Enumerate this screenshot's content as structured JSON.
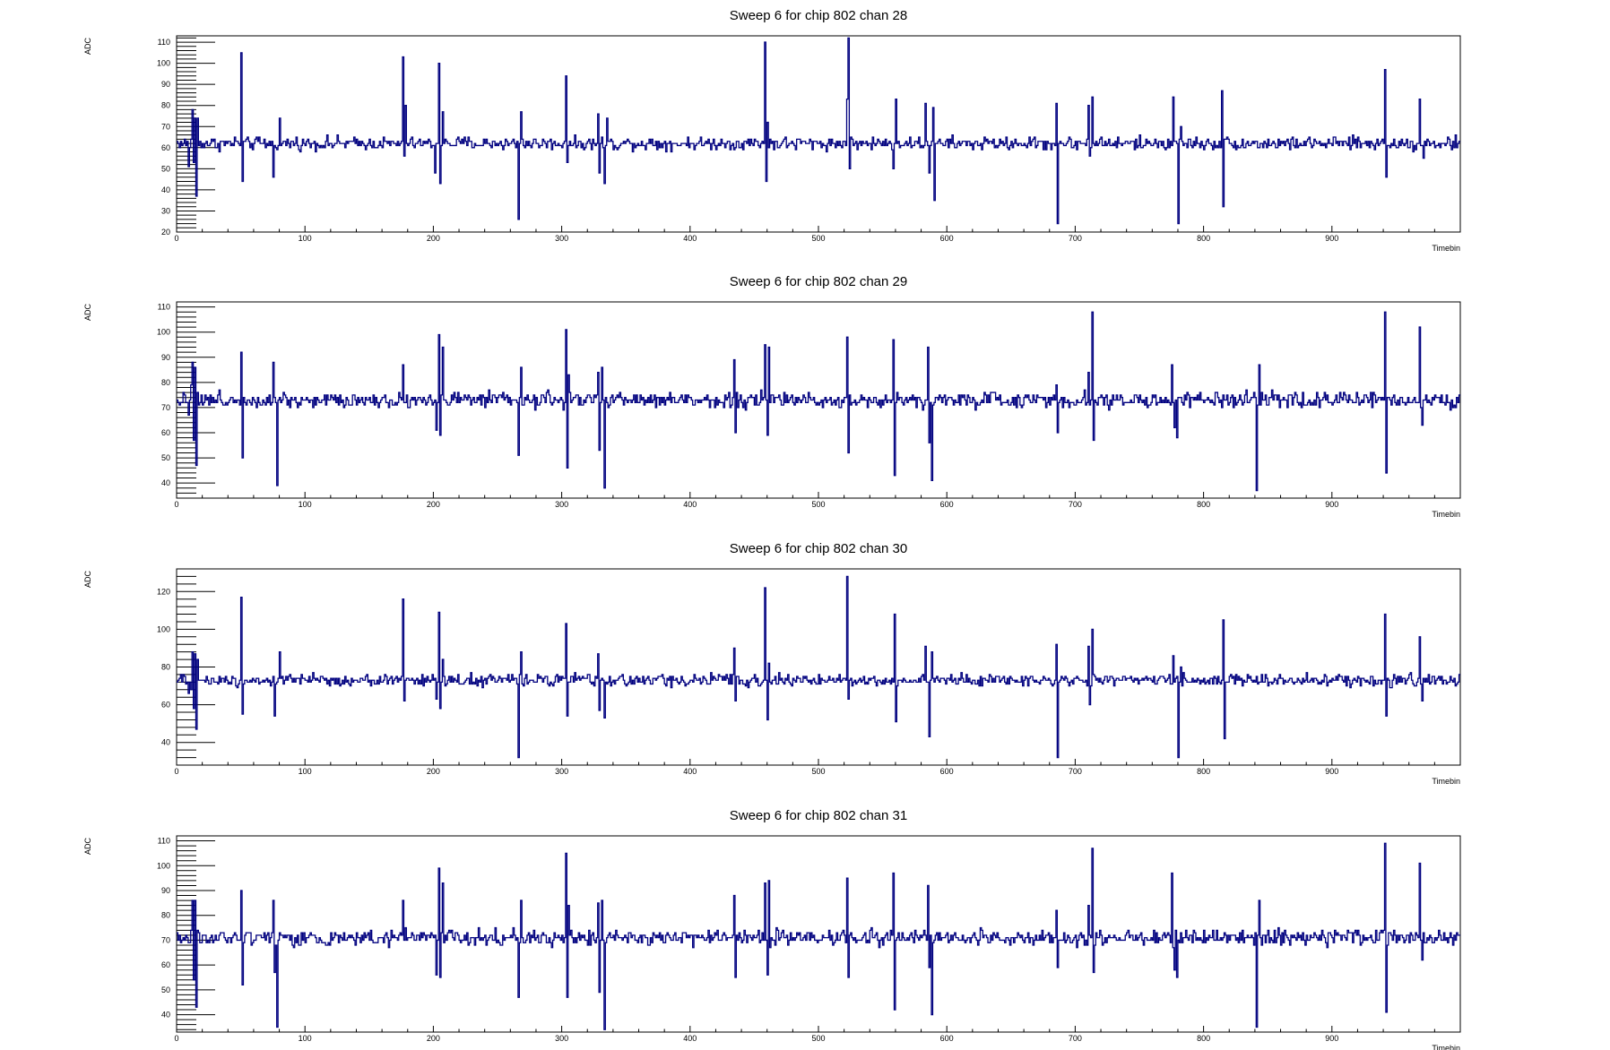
{
  "colors": {
    "trace": "#00007f",
    "frame": "#000000",
    "background": "#ffffff"
  },
  "chart_data": [
    {
      "type": "line",
      "title": "Sweep 6 for chip 802 chan 28",
      "xlabel": "Timebin",
      "ylabel": "ADC",
      "xlim": [
        0,
        1000
      ],
      "ylim": [
        20,
        113
      ],
      "xticks": [
        0,
        100,
        200,
        300,
        400,
        500,
        600,
        700,
        800,
        900
      ],
      "yticks": [
        20,
        30,
        40,
        50,
        60,
        70,
        80,
        90,
        100,
        110
      ],
      "baseline": 62,
      "noise": 2.5,
      "spikes": [
        {
          "x": 50,
          "y": 105
        },
        {
          "x": 51,
          "y": 44
        },
        {
          "x": 75,
          "y": 46
        },
        {
          "x": 80,
          "y": 74
        },
        {
          "x": 176,
          "y": 103
        },
        {
          "x": 177,
          "y": 56
        },
        {
          "x": 178,
          "y": 80
        },
        {
          "x": 201,
          "y": 48
        },
        {
          "x": 204,
          "y": 100
        },
        {
          "x": 205,
          "y": 43
        },
        {
          "x": 207,
          "y": 77
        },
        {
          "x": 266,
          "y": 26
        },
        {
          "x": 268,
          "y": 77
        },
        {
          "x": 303,
          "y": 94
        },
        {
          "x": 304,
          "y": 53
        },
        {
          "x": 328,
          "y": 76
        },
        {
          "x": 329,
          "y": 48
        },
        {
          "x": 333,
          "y": 43
        },
        {
          "x": 335,
          "y": 74
        },
        {
          "x": 458,
          "y": 110
        },
        {
          "x": 459,
          "y": 44
        },
        {
          "x": 460,
          "y": 72
        },
        {
          "x": 522,
          "y": 83
        },
        {
          "x": 523,
          "y": 112
        },
        {
          "x": 524,
          "y": 50
        },
        {
          "x": 558,
          "y": 50
        },
        {
          "x": 560,
          "y": 83
        },
        {
          "x": 583,
          "y": 81
        },
        {
          "x": 586,
          "y": 48
        },
        {
          "x": 589,
          "y": 79
        },
        {
          "x": 590,
          "y": 35
        },
        {
          "x": 685,
          "y": 81
        },
        {
          "x": 686,
          "y": 24
        },
        {
          "x": 710,
          "y": 80
        },
        {
          "x": 711,
          "y": 56
        },
        {
          "x": 713,
          "y": 84
        },
        {
          "x": 776,
          "y": 84
        },
        {
          "x": 780,
          "y": 24
        },
        {
          "x": 782,
          "y": 70
        },
        {
          "x": 814,
          "y": 87
        },
        {
          "x": 815,
          "y": 32
        },
        {
          "x": 941,
          "y": 97
        },
        {
          "x": 942,
          "y": 46
        },
        {
          "x": 968,
          "y": 83
        },
        {
          "x": 971,
          "y": 55
        }
      ],
      "startup": [
        {
          "x": 9,
          "y": 51
        },
        {
          "x": 11,
          "y": 64
        },
        {
          "x": 12,
          "y": 78
        },
        {
          "x": 13,
          "y": 53
        },
        {
          "x": 14,
          "y": 74
        },
        {
          "x": 15,
          "y": 37
        },
        {
          "x": 16,
          "y": 74
        }
      ]
    },
    {
      "type": "line",
      "title": "Sweep 6 for chip 802 chan 29",
      "xlabel": "Timebin",
      "ylabel": "ADC",
      "xlim": [
        0,
        1000
      ],
      "ylim": [
        34,
        112
      ],
      "xticks": [
        0,
        100,
        200,
        300,
        400,
        500,
        600,
        700,
        800,
        900
      ],
      "yticks": [
        40,
        50,
        60,
        70,
        80,
        90,
        100,
        110
      ],
      "baseline": 73,
      "noise": 2.5,
      "spikes": [
        {
          "x": 50,
          "y": 92
        },
        {
          "x": 51,
          "y": 50
        },
        {
          "x": 75,
          "y": 88
        },
        {
          "x": 78,
          "y": 39
        },
        {
          "x": 80,
          "y": 74
        },
        {
          "x": 176,
          "y": 87
        },
        {
          "x": 202,
          "y": 61
        },
        {
          "x": 204,
          "y": 99
        },
        {
          "x": 205,
          "y": 59
        },
        {
          "x": 207,
          "y": 94
        },
        {
          "x": 266,
          "y": 51
        },
        {
          "x": 268,
          "y": 86
        },
        {
          "x": 303,
          "y": 101
        },
        {
          "x": 304,
          "y": 46
        },
        {
          "x": 305,
          "y": 83
        },
        {
          "x": 328,
          "y": 84
        },
        {
          "x": 329,
          "y": 53
        },
        {
          "x": 331,
          "y": 86
        },
        {
          "x": 333,
          "y": 38
        },
        {
          "x": 434,
          "y": 89
        },
        {
          "x": 435,
          "y": 60
        },
        {
          "x": 458,
          "y": 95
        },
        {
          "x": 460,
          "y": 59
        },
        {
          "x": 461,
          "y": 94
        },
        {
          "x": 522,
          "y": 98
        },
        {
          "x": 523,
          "y": 52
        },
        {
          "x": 558,
          "y": 97
        },
        {
          "x": 559,
          "y": 43
        },
        {
          "x": 585,
          "y": 94
        },
        {
          "x": 586,
          "y": 56
        },
        {
          "x": 588,
          "y": 41
        },
        {
          "x": 685,
          "y": 79
        },
        {
          "x": 686,
          "y": 60
        },
        {
          "x": 710,
          "y": 84
        },
        {
          "x": 713,
          "y": 108
        },
        {
          "x": 714,
          "y": 57
        },
        {
          "x": 775,
          "y": 87
        },
        {
          "x": 777,
          "y": 62
        },
        {
          "x": 779,
          "y": 58
        },
        {
          "x": 841,
          "y": 37
        },
        {
          "x": 843,
          "y": 87
        },
        {
          "x": 941,
          "y": 108
        },
        {
          "x": 942,
          "y": 44
        },
        {
          "x": 968,
          "y": 102
        },
        {
          "x": 970,
          "y": 63
        }
      ],
      "startup": [
        {
          "x": 9,
          "y": 67
        },
        {
          "x": 11,
          "y": 79
        },
        {
          "x": 12,
          "y": 88
        },
        {
          "x": 13,
          "y": 57
        },
        {
          "x": 14,
          "y": 86
        },
        {
          "x": 15,
          "y": 47
        },
        {
          "x": 16,
          "y": 76
        }
      ]
    },
    {
      "type": "line",
      "title": "Sweep 6 for chip 802 chan 30",
      "xlabel": "Timebin",
      "ylabel": "ADC",
      "xlim": [
        0,
        1000
      ],
      "ylim": [
        28,
        132
      ],
      "xticks": [
        0,
        100,
        200,
        300,
        400,
        500,
        600,
        700,
        800,
        900
      ],
      "yticks": [
        40,
        60,
        80,
        100,
        120
      ],
      "baseline": 73,
      "noise": 2.5,
      "spikes": [
        {
          "x": 50,
          "y": 117
        },
        {
          "x": 51,
          "y": 55
        },
        {
          "x": 76,
          "y": 54
        },
        {
          "x": 80,
          "y": 88
        },
        {
          "x": 176,
          "y": 116
        },
        {
          "x": 177,
          "y": 62
        },
        {
          "x": 202,
          "y": 63
        },
        {
          "x": 204,
          "y": 109
        },
        {
          "x": 205,
          "y": 58
        },
        {
          "x": 207,
          "y": 84
        },
        {
          "x": 266,
          "y": 32
        },
        {
          "x": 268,
          "y": 88
        },
        {
          "x": 303,
          "y": 103
        },
        {
          "x": 304,
          "y": 54
        },
        {
          "x": 328,
          "y": 87
        },
        {
          "x": 329,
          "y": 57
        },
        {
          "x": 333,
          "y": 53
        },
        {
          "x": 434,
          "y": 90
        },
        {
          "x": 435,
          "y": 62
        },
        {
          "x": 458,
          "y": 122
        },
        {
          "x": 460,
          "y": 52
        },
        {
          "x": 461,
          "y": 82
        },
        {
          "x": 522,
          "y": 128
        },
        {
          "x": 523,
          "y": 63
        },
        {
          "x": 559,
          "y": 108
        },
        {
          "x": 560,
          "y": 51
        },
        {
          "x": 583,
          "y": 91
        },
        {
          "x": 586,
          "y": 43
        },
        {
          "x": 588,
          "y": 88
        },
        {
          "x": 685,
          "y": 92
        },
        {
          "x": 686,
          "y": 32
        },
        {
          "x": 710,
          "y": 91
        },
        {
          "x": 711,
          "y": 60
        },
        {
          "x": 713,
          "y": 100
        },
        {
          "x": 776,
          "y": 86
        },
        {
          "x": 780,
          "y": 32
        },
        {
          "x": 782,
          "y": 80
        },
        {
          "x": 815,
          "y": 105
        },
        {
          "x": 816,
          "y": 42
        },
        {
          "x": 941,
          "y": 108
        },
        {
          "x": 942,
          "y": 54
        },
        {
          "x": 968,
          "y": 96
        },
        {
          "x": 970,
          "y": 62
        }
      ],
      "startup": [
        {
          "x": 9,
          "y": 66
        },
        {
          "x": 11,
          "y": 68
        },
        {
          "x": 12,
          "y": 88
        },
        {
          "x": 13,
          "y": 58
        },
        {
          "x": 14,
          "y": 87
        },
        {
          "x": 15,
          "y": 47
        },
        {
          "x": 16,
          "y": 84
        }
      ]
    },
    {
      "type": "line",
      "title": "Sweep 6 for chip 802 chan 31",
      "xlabel": "Timebin",
      "ylabel": "ADC",
      "xlim": [
        0,
        1000
      ],
      "ylim": [
        33,
        112
      ],
      "xticks": [
        0,
        100,
        200,
        300,
        400,
        500,
        600,
        700,
        800,
        900
      ],
      "yticks": [
        40,
        50,
        60,
        70,
        80,
        90,
        100,
        110
      ],
      "baseline": 71,
      "noise": 2.5,
      "spikes": [
        {
          "x": 50,
          "y": 90
        },
        {
          "x": 51,
          "y": 52
        },
        {
          "x": 75,
          "y": 86
        },
        {
          "x": 76,
          "y": 57
        },
        {
          "x": 78,
          "y": 35
        },
        {
          "x": 80,
          "y": 73
        },
        {
          "x": 176,
          "y": 86
        },
        {
          "x": 202,
          "y": 56
        },
        {
          "x": 204,
          "y": 99
        },
        {
          "x": 205,
          "y": 55
        },
        {
          "x": 207,
          "y": 93
        },
        {
          "x": 266,
          "y": 47
        },
        {
          "x": 268,
          "y": 86
        },
        {
          "x": 303,
          "y": 105
        },
        {
          "x": 304,
          "y": 47
        },
        {
          "x": 305,
          "y": 84
        },
        {
          "x": 328,
          "y": 85
        },
        {
          "x": 329,
          "y": 49
        },
        {
          "x": 331,
          "y": 86
        },
        {
          "x": 333,
          "y": 34
        },
        {
          "x": 434,
          "y": 88
        },
        {
          "x": 435,
          "y": 55
        },
        {
          "x": 458,
          "y": 93
        },
        {
          "x": 460,
          "y": 56
        },
        {
          "x": 461,
          "y": 94
        },
        {
          "x": 522,
          "y": 95
        },
        {
          "x": 523,
          "y": 55
        },
        {
          "x": 558,
          "y": 97
        },
        {
          "x": 559,
          "y": 42
        },
        {
          "x": 585,
          "y": 92
        },
        {
          "x": 586,
          "y": 59
        },
        {
          "x": 588,
          "y": 40
        },
        {
          "x": 685,
          "y": 82
        },
        {
          "x": 686,
          "y": 59
        },
        {
          "x": 710,
          "y": 84
        },
        {
          "x": 713,
          "y": 107
        },
        {
          "x": 714,
          "y": 57
        },
        {
          "x": 775,
          "y": 97
        },
        {
          "x": 777,
          "y": 58
        },
        {
          "x": 779,
          "y": 55
        },
        {
          "x": 841,
          "y": 35
        },
        {
          "x": 843,
          "y": 86
        },
        {
          "x": 941,
          "y": 109
        },
        {
          "x": 942,
          "y": 41
        },
        {
          "x": 968,
          "y": 101
        },
        {
          "x": 970,
          "y": 62
        }
      ],
      "startup": [
        {
          "x": 9,
          "y": 69
        },
        {
          "x": 11,
          "y": 74
        },
        {
          "x": 12,
          "y": 86
        },
        {
          "x": 13,
          "y": 54
        },
        {
          "x": 14,
          "y": 86
        },
        {
          "x": 15,
          "y": 43
        },
        {
          "x": 16,
          "y": 74
        }
      ]
    }
  ]
}
